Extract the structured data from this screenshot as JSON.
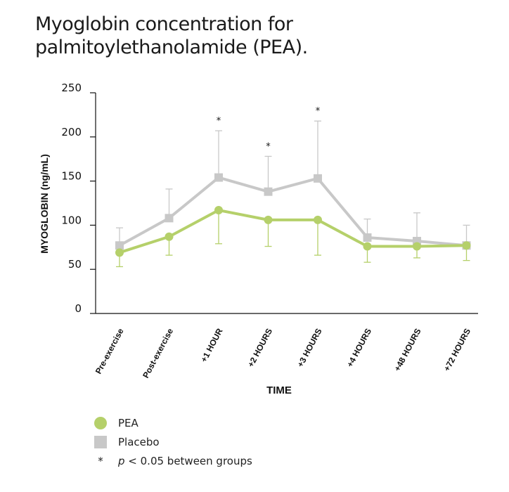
{
  "title_lines": [
    "Myoglobin concentration for",
    "palmitoylethanolamide (PEA)."
  ],
  "chart_data": {
    "type": "line",
    "xlabel": "TIME",
    "ylabel": "MYOGLOBIN (ng/mL)",
    "ylim": [
      0,
      250
    ],
    "yticks": [
      0,
      50,
      100,
      150,
      200,
      250
    ],
    "categories": [
      "Pre-exercise",
      "Post-exercise",
      "+1 HOUR",
      "+2 HOURS",
      "+3 HOURS",
      "+4 HOURS",
      "+48 HOURS",
      "+72 HOURS"
    ],
    "series": [
      {
        "name": "Placebo",
        "color": "#c8c8c8",
        "marker": "square",
        "values": [
          77,
          108,
          154,
          138,
          153,
          86,
          82,
          77
        ],
        "error_upper": [
          97,
          141,
          207,
          178,
          218,
          107,
          114,
          100
        ],
        "error_lower": null
      },
      {
        "name": "PEA",
        "color": "#b5d06a",
        "marker": "circle",
        "values": [
          69,
          87,
          117,
          106,
          106,
          76,
          76,
          77
        ],
        "error_upper": null,
        "error_lower": [
          53,
          66,
          79,
          76,
          66,
          58,
          63,
          60
        ]
      }
    ],
    "significant_star_indices": [
      2,
      3,
      4
    ],
    "significance_symbol": "*",
    "legend_position": "bottom-left",
    "grid": false
  },
  "legend": {
    "pea_label": "PEA",
    "placebo_label": "Placebo",
    "star_symbol": "*",
    "p_symbol": "p",
    "p_text": " < 0.05 between groups"
  }
}
